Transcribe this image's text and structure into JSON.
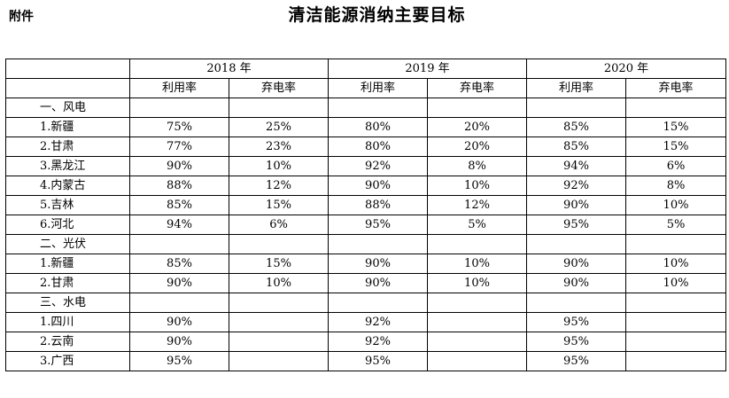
{
  "header": {
    "attachment": "附件",
    "title": "清洁能源消纳主要目标"
  },
  "table": {
    "years": [
      "2018 年",
      "2019 年",
      "2020 年"
    ],
    "subheaders": [
      "利用率",
      "弃电率",
      "利用率",
      "弃电率",
      "利用率",
      "弃电率"
    ],
    "rows": [
      {
        "label": "一、风电",
        "section": true,
        "cells": [
          "",
          "",
          "",
          "",
          "",
          ""
        ]
      },
      {
        "label": "1.新疆",
        "cells": [
          "75%",
          "25%",
          "80%",
          "20%",
          "85%",
          "15%"
        ]
      },
      {
        "label": "2.甘肃",
        "cells": [
          "77%",
          "23%",
          "80%",
          "20%",
          "85%",
          "15%"
        ]
      },
      {
        "label": "3.黑龙江",
        "cells": [
          "90%",
          "10%",
          "92%",
          "8%",
          "94%",
          "6%"
        ]
      },
      {
        "label": "4.内蒙古",
        "cells": [
          "88%",
          "12%",
          "90%",
          "10%",
          "92%",
          "8%"
        ]
      },
      {
        "label": "5.吉林",
        "cells": [
          "85%",
          "15%",
          "88%",
          "12%",
          "90%",
          "10%"
        ]
      },
      {
        "label": "6.河北",
        "cells": [
          "94%",
          "6%",
          "95%",
          "5%",
          "95%",
          "5%"
        ]
      },
      {
        "label": "二、光伏",
        "section": true,
        "cells": [
          "",
          "",
          "",
          "",
          "",
          ""
        ]
      },
      {
        "label": "1.新疆",
        "cells": [
          "85%",
          "15%",
          "90%",
          "10%",
          "90%",
          "10%"
        ]
      },
      {
        "label": "2.甘肃",
        "cells": [
          "90%",
          "10%",
          "90%",
          "10%",
          "90%",
          "10%"
        ]
      },
      {
        "label": "三、水电",
        "section": true,
        "cells": [
          "",
          "",
          "",
          "",
          "",
          ""
        ]
      },
      {
        "label": "1.四川",
        "cells": [
          "90%",
          "",
          "92%",
          "",
          "95%",
          ""
        ]
      },
      {
        "label": "2.云南",
        "cells": [
          "90%",
          "",
          "92%",
          "",
          "95%",
          ""
        ]
      },
      {
        "label": "3.广西",
        "cells": [
          "95%",
          "",
          "95%",
          "",
          "95%",
          ""
        ]
      }
    ]
  }
}
